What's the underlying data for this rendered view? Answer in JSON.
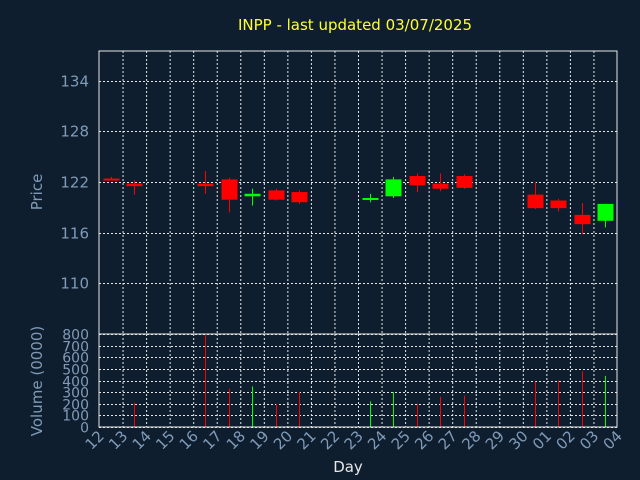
{
  "chart_data": {
    "type": "candlestick",
    "title": "INPP - last updated 03/07/2025",
    "colors": {
      "background": "#0f1e2e",
      "up": "#00ff00",
      "down": "#ff0000",
      "grid": "#e6e6e6",
      "title": "#ffff33",
      "axis_text": "#7f9bb8"
    },
    "price_panel": {
      "ylabel": "Price",
      "ylim": [
        104,
        137.5
      ],
      "yticks": [
        110,
        116,
        122,
        128,
        134
      ]
    },
    "volume_panel": {
      "ylabel": "Volume (0000)",
      "ylim": [
        0,
        800
      ],
      "yticks": [
        0,
        100,
        200,
        300,
        400,
        500,
        600,
        700,
        800
      ]
    },
    "xlabel": "Day",
    "x_tick_labels": [
      "12",
      "13",
      "14",
      "15",
      "16",
      "17",
      "18",
      "19",
      "20",
      "21",
      "22",
      "23",
      "24",
      "25",
      "26",
      "27",
      "28",
      "29",
      "30",
      "01",
      "02",
      "03",
      "04"
    ],
    "candles": [
      {
        "i": 0,
        "open": 122.4,
        "high": 122.6,
        "low": 122.2,
        "close": 122.3,
        "volume": 0
      },
      {
        "i": 1,
        "open": 121.8,
        "high": 122.2,
        "low": 120.5,
        "close": 121.5,
        "volume": 210
      },
      {
        "i": 4,
        "open": 121.8,
        "high": 123.3,
        "low": 120.6,
        "close": 121.5,
        "volume": 790
      },
      {
        "i": 5,
        "open": 122.3,
        "high": 122.5,
        "low": 118.4,
        "close": 119.9,
        "volume": 330
      },
      {
        "i": 6,
        "open": 120.3,
        "high": 121.2,
        "low": 119.2,
        "close": 120.6,
        "volume": 350
      },
      {
        "i": 7,
        "open": 121.0,
        "high": 121.2,
        "low": 119.8,
        "close": 119.9,
        "volume": 200
      },
      {
        "i": 8,
        "open": 120.8,
        "high": 121.0,
        "low": 119.4,
        "close": 119.6,
        "volume": 300
      },
      {
        "i": 11,
        "open": 119.9,
        "high": 120.6,
        "low": 119.6,
        "close": 120.1,
        "volume": 220
      },
      {
        "i": 12,
        "open": 120.3,
        "high": 122.6,
        "low": 120.1,
        "close": 122.3,
        "volume": 300
      },
      {
        "i": 13,
        "open": 122.7,
        "high": 123.0,
        "low": 120.8,
        "close": 121.6,
        "volume": 200
      },
      {
        "i": 14,
        "open": 121.8,
        "high": 123.0,
        "low": 120.9,
        "close": 121.2,
        "volume": 260
      },
      {
        "i": 15,
        "open": 122.7,
        "high": 122.9,
        "low": 121.2,
        "close": 121.3,
        "volume": 270
      },
      {
        "i": 18,
        "open": 120.5,
        "high": 122.0,
        "low": 118.8,
        "close": 118.9,
        "volume": 390
      },
      {
        "i": 19,
        "open": 119.8,
        "high": 120.0,
        "low": 118.5,
        "close": 118.9,
        "volume": 400
      },
      {
        "i": 20,
        "open": 118.1,
        "high": 119.5,
        "low": 115.8,
        "close": 117.0,
        "volume": 480
      },
      {
        "i": 21,
        "open": 117.4,
        "high": 119.4,
        "low": 116.6,
        "close": 119.4,
        "volume": 440
      }
    ]
  }
}
